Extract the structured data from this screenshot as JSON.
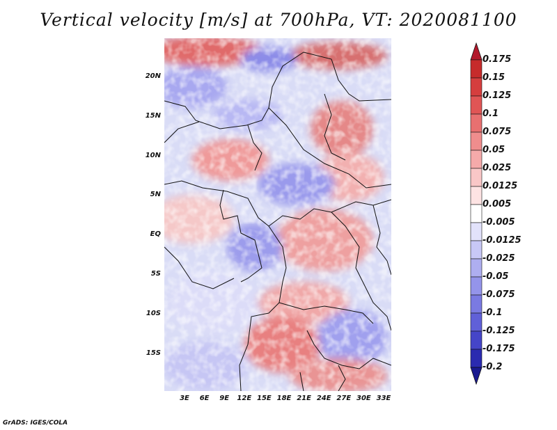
{
  "title": "Vertical velocity [m/s] at 700hPa, VT: 2020081100",
  "footer": "GrADS: IGES/COLA",
  "latitude_labels": [
    "20N",
    "15N",
    "10N",
    "5N",
    "EQ",
    "5S",
    "10S",
    "15S"
  ],
  "longitude_labels": [
    "3E",
    "6E",
    "9E",
    "12E",
    "15E",
    "18E",
    "21E",
    "24E",
    "27E",
    "30E",
    "33E"
  ],
  "colorbar": {
    "labels": [
      "0.175",
      "0.15",
      "0.125",
      "0.1",
      "0.075",
      "0.05",
      "0.025",
      "0.0125",
      "0.005",
      "-0.005",
      "-0.0125",
      "-0.025",
      "-0.05",
      "-0.075",
      "-0.1",
      "-0.125",
      "-0.175",
      "-0.2"
    ],
    "colors": [
      "#b2182b",
      "#c62b2b",
      "#d53e3e",
      "#e05555",
      "#e87070",
      "#ef8d8d",
      "#f5aaaa",
      "#f9c7c7",
      "#fde3e3",
      "#ffffff",
      "#e2e2fb",
      "#c8c8f6",
      "#aeaef0",
      "#9494ea",
      "#7a7ae2",
      "#6060d8",
      "#4545c8",
      "#2b2bb0",
      "#1a1a90"
    ]
  }
}
